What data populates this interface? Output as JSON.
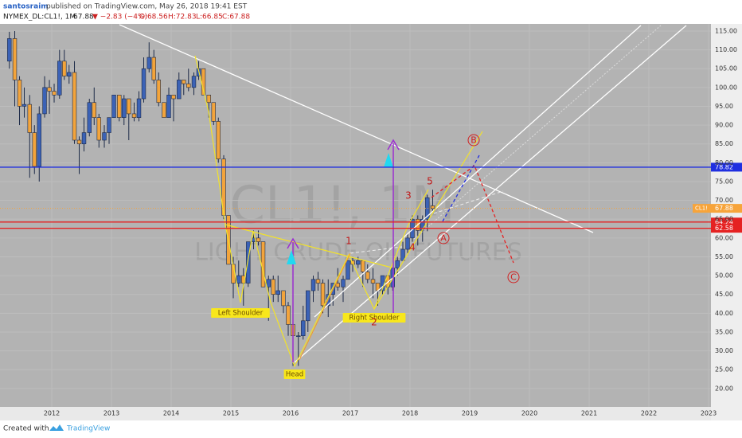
{
  "header": {
    "author": "santosraim",
    "published": "published on TradingView.com, May 26, 2018 19:41 EST",
    "symbol": "NYMEX_DL:CL1!, 1M",
    "last": "67.88",
    "change": "▼ −2.83 (−4%)",
    "ohlc": [
      "O:68.56",
      "H:72.83",
      "L:66.85",
      "C:67.88"
    ]
  },
  "footer": {
    "created": "Created with",
    "brand": "TradingView"
  },
  "chart_data": {
    "type": "candlestick",
    "watermark": {
      "symbol": "CL1!, 1M",
      "description": "LIGHT CRUDE OIL FUTURES"
    },
    "x": [
      2011.29,
      2011.38,
      2011.46,
      2011.54,
      2011.63,
      2011.71,
      2011.79,
      2011.88,
      2011.96,
      2012.04,
      2012.13,
      2012.21,
      2012.29,
      2012.38,
      2012.46,
      2012.54,
      2012.63,
      2012.71,
      2012.79,
      2012.88,
      2012.96,
      2013.04,
      2013.13,
      2013.21,
      2013.29,
      2013.38,
      2013.46,
      2013.54,
      2013.63,
      2013.71,
      2013.79,
      2013.88,
      2013.96,
      2014.04,
      2014.13,
      2014.21,
      2014.29,
      2014.38,
      2014.46,
      2014.54,
      2014.63,
      2014.71,
      2014.79,
      2014.88,
      2014.96,
      2015.04,
      2015.13,
      2015.21,
      2015.29,
      2015.38,
      2015.46,
      2015.54,
      2015.63,
      2015.71,
      2015.79,
      2015.88,
      2015.96,
      2016.04,
      2016.13,
      2016.21,
      2016.29,
      2016.38,
      2016.46,
      2016.54,
      2016.63,
      2016.71,
      2016.79,
      2016.88,
      2016.96,
      2017.04,
      2017.13,
      2017.21,
      2017.29,
      2017.38,
      2017.46,
      2017.54,
      2017.63,
      2017.71,
      2017.79,
      2017.88,
      2017.96,
      2018.04,
      2018.13,
      2018.21,
      2018.29,
      2018.38
    ],
    "open": [
      107,
      113,
      102,
      95,
      95.5,
      88,
      79,
      93,
      100,
      99,
      98,
      107,
      103,
      104,
      86,
      85,
      88,
      96,
      92,
      86,
      88,
      92,
      98,
      92,
      97,
      93,
      92,
      97,
      105,
      108,
      102,
      96,
      92,
      98,
      97,
      102,
      101,
      100,
      103,
      105,
      98,
      96,
      91,
      81,
      66,
      53,
      48,
      50,
      48,
      59,
      60,
      59,
      47,
      49,
      45,
      46,
      42,
      37,
      34,
      34,
      38,
      46,
      49,
      48,
      42,
      45,
      48,
      47,
      49,
      54,
      53,
      54,
      51,
      49,
      48,
      46,
      50,
      47,
      52,
      54,
      57,
      60,
      65,
      62,
      65,
      68.56
    ],
    "high": [
      114.8,
      115,
      103,
      100,
      98,
      90,
      95,
      103,
      102,
      101,
      110,
      110,
      106,
      107,
      87,
      92,
      97,
      100,
      93,
      90,
      92,
      98,
      98,
      98,
      97,
      96,
      99,
      108,
      112,
      110,
      104,
      96,
      100,
      98,
      104,
      102,
      105,
      104,
      107,
      105,
      98,
      96,
      92,
      82,
      66,
      55,
      54,
      52,
      59,
      62,
      62,
      59,
      50,
      50,
      50,
      46,
      43,
      38,
      35,
      42,
      46,
      50,
      51,
      49,
      49,
      48,
      52,
      50,
      54,
      55,
      55,
      54,
      53,
      52,
      48,
      50,
      50,
      52,
      55,
      59,
      61,
      66,
      66,
      66,
      71.5,
      72.83
    ],
    "low": [
      105,
      95,
      90,
      92,
      76,
      77,
      75,
      92,
      93,
      96,
      97,
      102,
      101,
      85,
      77,
      83,
      87,
      90,
      84,
      84,
      85,
      92,
      91,
      90,
      86,
      91,
      91,
      96,
      104,
      101,
      95,
      92,
      92,
      91,
      97,
      98,
      99,
      98,
      102,
      98,
      92,
      90,
      80,
      65,
      53,
      44,
      47,
      42,
      47,
      57,
      58,
      47,
      38,
      43,
      43,
      40,
      34,
      26,
      26,
      33,
      35,
      43,
      46,
      40,
      39,
      42,
      46,
      43,
      49,
      51,
      52,
      47,
      48,
      44,
      42,
      45,
      45,
      46,
      50,
      54,
      56,
      59,
      58,
      59,
      61.8,
      66.85
    ],
    "close": [
      113,
      102,
      95,
      95.5,
      88,
      79,
      93,
      100,
      99,
      98,
      107,
      103,
      104,
      86,
      85,
      88,
      96,
      92,
      86,
      88,
      92,
      98,
      92,
      97,
      93,
      92,
      97,
      105,
      108,
      102,
      96,
      92,
      98,
      97,
      102,
      101,
      100,
      103,
      105,
      98,
      96,
      91,
      81,
      66,
      53,
      48,
      50,
      48,
      59,
      60,
      59,
      47,
      49,
      45,
      46,
      42,
      37,
      34,
      34,
      38,
      46,
      49,
      48,
      42,
      45,
      48,
      47,
      49,
      54,
      53,
      54,
      51,
      49,
      48,
      46,
      50,
      47,
      52,
      54,
      57,
      60,
      65,
      62,
      65,
      70.71,
      67.88
    ],
    "up_color": "#3b62b6",
    "down_color": "#f3a43b",
    "xlim": [
      2011.133,
      2023.04
    ],
    "ylim": [
      15.1,
      116.9
    ],
    "xticks": [
      2012,
      2013,
      2014,
      2015,
      2016,
      2017,
      2018,
      2019,
      2020,
      2021,
      2022,
      2023
    ],
    "yticks": [
      {
        "value": 20,
        "label": "20.00"
      },
      {
        "value": 25,
        "label": "25.00"
      },
      {
        "value": 30,
        "label": "30.00"
      },
      {
        "value": 35,
        "label": "35.00"
      },
      {
        "value": 40,
        "label": "40.00"
      },
      {
        "value": 45,
        "label": "45.00"
      },
      {
        "value": 50,
        "label": "50.00"
      },
      {
        "value": 55,
        "label": "55.00"
      },
      {
        "value": 60,
        "label": "60.00"
      },
      {
        "value": 65,
        "label": "65.00"
      },
      {
        "value": 70,
        "label": "70.00"
      },
      {
        "value": 75,
        "label": "75.00"
      },
      {
        "value": 80,
        "label": "80.00"
      },
      {
        "value": 85,
        "label": "85.00"
      },
      {
        "value": 90,
        "label": "90.00"
      },
      {
        "value": 95,
        "label": "95.00"
      },
      {
        "value": 100,
        "label": "100.00"
      },
      {
        "value": 105,
        "label": "105.00"
      },
      {
        "value": 110,
        "label": "110.00"
      },
      {
        "value": 115,
        "label": "115.00"
      }
    ],
    "grid": true,
    "price_lines": [
      {
        "value": 78.82,
        "color": "#1f2fe0"
      },
      {
        "value": 64.24,
        "color": "#e52222"
      },
      {
        "value": 62.58,
        "color": "#e52222"
      }
    ],
    "current_price": {
      "value": 67.88,
      "symbol": "CL1!",
      "color": "#f7a43a"
    },
    "annotations": [
      "Left Shoulder",
      "Head",
      "Right Shoulder",
      "1",
      "2",
      "3",
      "4",
      "5",
      "A",
      "B",
      "C"
    ]
  }
}
